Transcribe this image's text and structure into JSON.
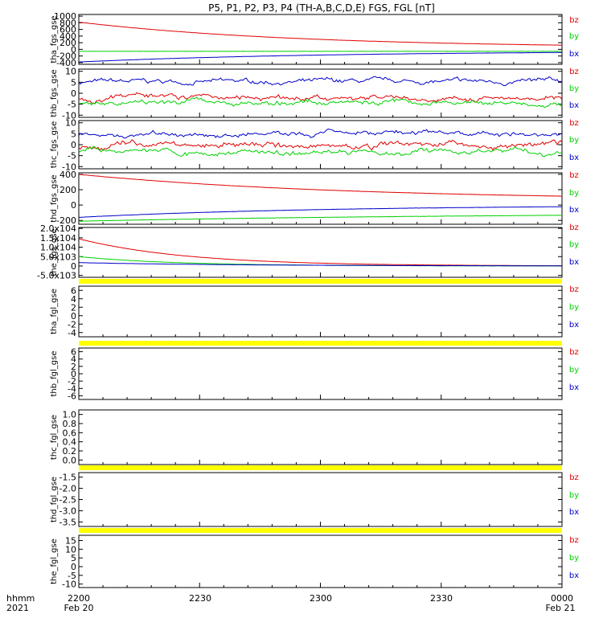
{
  "title": "P5, P1, P2, P3, P4 (TH-A,B,C,D,E) FGS, FGL [nT]",
  "colors": {
    "bz": "#e00000",
    "by": "#00d000",
    "bx": "#0000c8",
    "flag": "#ffff00"
  },
  "x_axis": {
    "ticks": [
      "2200",
      "2230",
      "2300",
      "2330",
      "0000"
    ],
    "left_label_1": "hhmm",
    "left_label_2": "2021",
    "date_start": "Feb 20",
    "date_end": "Feb 21"
  },
  "chart_data": [
    {
      "type": "line",
      "ylabel": "tha_fgs_gse",
      "yticks": [
        "1000",
        "800",
        "600",
        "400",
        "200",
        "0",
        "-200",
        "-400"
      ],
      "ylim": [
        -450,
        1050
      ],
      "legend": [
        "bz",
        "by",
        "bx"
      ],
      "series": [
        {
          "name": "bz",
          "start": 820,
          "end": 40,
          "decay": 2.2,
          "noise": 3
        },
        {
          "name": "by",
          "start": -60,
          "end": -70,
          "decay": 0,
          "noise": 3
        },
        {
          "name": "bx",
          "start": -380,
          "end": -50,
          "decay": 2.0,
          "noise": 3
        }
      ]
    },
    {
      "type": "line",
      "ylabel": "thb_fgs_gse",
      "yticks": [
        "10",
        "5",
        "0",
        "-5",
        "-10"
      ],
      "ylim": [
        -11,
        11
      ],
      "legend": [
        "bz",
        "by",
        "bx"
      ],
      "series": [
        {
          "name": "bz",
          "base": -1.8,
          "noise": 1.0,
          "seed": 3
        },
        {
          "name": "by",
          "base": -4.2,
          "noise": 1.0,
          "seed": 5
        },
        {
          "name": "bx",
          "base": 5.2,
          "noise": 0.9,
          "seed": 7
        }
      ]
    },
    {
      "type": "line",
      "ylabel": "thc_fgs_gse",
      "yticks": [
        "10",
        "5",
        "0",
        "-5",
        "-10"
      ],
      "ylim": [
        -11,
        11
      ],
      "legend": [
        "bz",
        "by",
        "bx"
      ],
      "series": [
        {
          "name": "bz",
          "base": -0.5,
          "noise": 1.2,
          "seed": 11
        },
        {
          "name": "by",
          "base": -3.3,
          "noise": 1.0,
          "seed": 13
        },
        {
          "name": "bx",
          "base": 5.0,
          "noise": 0.9,
          "seed": 17
        }
      ]
    },
    {
      "type": "line",
      "ylabel": "thd_fgs_gse",
      "yticks": [
        "400",
        "200",
        "0",
        "-200"
      ],
      "ylim": [
        -250,
        420
      ],
      "legend": [
        "bz",
        "by",
        "bx"
      ],
      "series": [
        {
          "name": "bz",
          "start": 400,
          "end": 60,
          "decay": 1.8,
          "noise": 2
        },
        {
          "name": "by",
          "start": -210,
          "end": -100,
          "decay": 1.2,
          "noise": 2
        },
        {
          "name": "bx",
          "start": -160,
          "end": 0,
          "decay": 2.0,
          "noise": 2
        }
      ]
    },
    {
      "type": "line",
      "ylabel": "the_fgs_gse",
      "yticks": [
        "2.0x10^4",
        "1.5x10^4",
        "1.0x10^4",
        "5.0x10^3",
        "0",
        "-5.0x10^3"
      ],
      "ylim": [
        -6000,
        20500
      ],
      "legend": [
        "bz",
        "by",
        "bx"
      ],
      "series": [
        {
          "name": "bz",
          "start": 14500,
          "end": 0,
          "decay": 4.5,
          "noise": 60
        },
        {
          "name": "by",
          "start": 5000,
          "end": 0,
          "decay": 5.0,
          "noise": 60
        },
        {
          "name": "bx",
          "start": 1800,
          "end": 0,
          "decay": 3.0,
          "noise": 40
        }
      ]
    },
    {
      "type": "line",
      "ylabel": "tha_fgl_gse",
      "yticks": [
        "6",
        "4",
        "2",
        "0",
        "-2",
        "-4"
      ],
      "ylim": [
        -5,
        7
      ],
      "legend": [
        "bz",
        "by",
        "bx"
      ],
      "series": [],
      "flag_above": true
    },
    {
      "type": "line",
      "ylabel": "thb_fgl_gse",
      "yticks": [
        "6",
        "4",
        "2",
        "0",
        "-2",
        "-4",
        "-6"
      ],
      "ylim": [
        -7,
        7
      ],
      "legend": [
        "bz",
        "by",
        "bx"
      ],
      "series": [],
      "flag_above": true
    },
    {
      "type": "line",
      "ylabel": "thc_fgl_gse",
      "yticks": [
        "1.0",
        "0.8",
        "0.6",
        "0.4",
        "0.2",
        "0.0"
      ],
      "ylim": [
        -0.1,
        1.1
      ],
      "legend": [],
      "series": []
    },
    {
      "type": "line",
      "ylabel": "thd_fgl_gse",
      "yticks": [
        "-1.5",
        "-2.0",
        "-2.5",
        "-3.0",
        "-3.5"
      ],
      "ylim": [
        -3.7,
        -1.3
      ],
      "legend": [
        "bz",
        "by",
        "bx"
      ],
      "series": [],
      "flag_above": true
    },
    {
      "type": "line",
      "ylabel": "the_fgl_gse",
      "yticks": [
        "15",
        "10",
        "5",
        "0",
        "-5",
        "-10"
      ],
      "ylim": [
        -12,
        18
      ],
      "legend": [
        "bz",
        "by",
        "bx"
      ],
      "series": [],
      "flag_above": true
    }
  ]
}
